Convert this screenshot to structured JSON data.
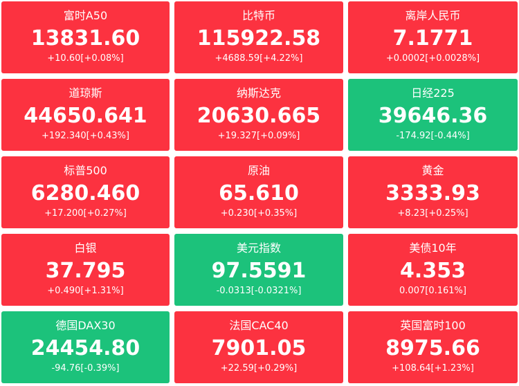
{
  "tiles": [
    {
      "name": "富时A50",
      "price": "13831.60",
      "change": "+10.60[+0.08%]",
      "color": "#fc3240"
    },
    {
      "name": "比特币",
      "price": "115922.58",
      "change": "+4688.59[+4.22%]",
      "color": "#fc3240"
    },
    {
      "name": "离岸人民币",
      "price": "7.1771",
      "change": "+0.0002[+0.0028%]",
      "color": "#fc3240"
    },
    {
      "name": "道琼斯",
      "price": "44650.641",
      "change": "+192.340[+0.43%]",
      "color": "#fc3240"
    },
    {
      "name": "纳斯达克",
      "price": "20630.665",
      "change": "+19.327[+0.09%]",
      "color": "#fc3240"
    },
    {
      "name": "日经225",
      "price": "39646.36",
      "change": "-174.92[-0.44%]",
      "color": "#1cc27b"
    },
    {
      "name": "标普500",
      "price": "6280.460",
      "change": "+17.200[+0.27%]",
      "color": "#fc3240"
    },
    {
      "name": "原油",
      "price": "65.610",
      "change": "+0.230[+0.35%]",
      "color": "#fc3240"
    },
    {
      "name": "黄金",
      "price": "3333.93",
      "change": "+8.23[+0.25%]",
      "color": "#fc3240"
    },
    {
      "name": "白银",
      "price": "37.795",
      "change": "+0.490[+1.31%]",
      "color": "#fc3240"
    },
    {
      "name": "美元指数",
      "price": "97.5591",
      "change": "-0.0313[-0.0321%]",
      "color": "#1cc27b"
    },
    {
      "name": "美债10年",
      "price": "4.353",
      "change": "0.007[0.161%]",
      "color": "#fc3240"
    },
    {
      "name": "德国DAX30",
      "price": "24454.80",
      "change": "-94.76[-0.39%]",
      "color": "#1cc27b"
    },
    {
      "name": "法国CAC40",
      "price": "7901.05",
      "change": "+22.59[+0.29%]",
      "color": "#fc3240"
    },
    {
      "name": "英国富时100",
      "price": "8975.66",
      "change": "+108.64[+1.23%]",
      "color": "#fc3240"
    }
  ]
}
